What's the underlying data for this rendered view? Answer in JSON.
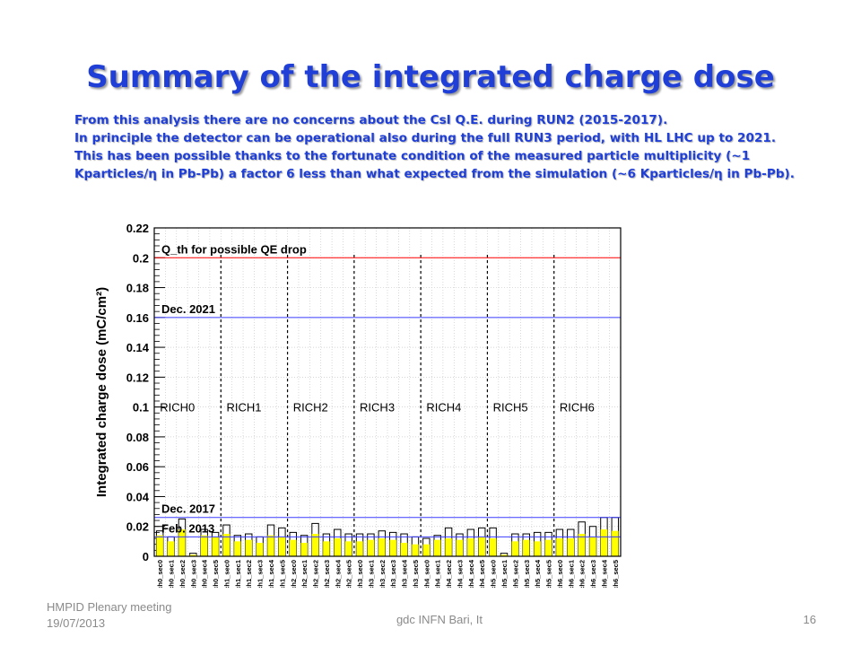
{
  "slide": {
    "title": "Summary of the integrated charge dose",
    "paragraph1": "From this analysis there are no concerns about the CsI Q.E. during RUN2 (2015-2017).",
    "paragraph2": "In principle the detector can be operational also during the full RUN3 period, with HL LHC up to 2021. This has been possible thanks to the fortunate condition of the measured particle multiplicity (~1 Kparticles/η in Pb-Pb) a factor 6 less than what expected from the simulation (~6 Kparticles/η in Pb-Pb)."
  },
  "footer": {
    "left_line1": "HMPID Plenary meeting",
    "left_line2": "19/07/2013",
    "center": "gdc INFN Bari, It",
    "page_number": "16"
  },
  "chart_data": {
    "type": "bar",
    "ylabel": "Integrated charge dose (mC/cm²)",
    "ylim": [
      0,
      0.22
    ],
    "yticks": [
      "0",
      "0.02",
      "0.04",
      "0.06",
      "0.08",
      "0.1",
      "0.12",
      "0.14",
      "0.16",
      "0.18",
      "0.2",
      "0.22"
    ],
    "categories": [
      "ch0_sec0",
      "ch0_sec1",
      "ch0_sec2",
      "ch0_sec3",
      "ch0_sec4",
      "ch0_sec5",
      "ch1_sec0",
      "ch1_sec1",
      "ch1_sec2",
      "ch1_sec3",
      "ch1_sec4",
      "ch1_sec5",
      "ch2_sec0",
      "ch2_sec1",
      "ch2_sec2",
      "ch2_sec3",
      "ch2_sec4",
      "ch2_sec5",
      "ch3_sec0",
      "ch3_sec1",
      "ch3_sec2",
      "ch3_sec3",
      "ch3_sec4",
      "ch3_sec5",
      "ch4_sec0",
      "ch4_sec1",
      "ch4_sec2",
      "ch4_sec3",
      "ch4_sec4",
      "ch4_sec5",
      "ch5_sec0",
      "ch5_sec1",
      "ch5_sec2",
      "ch5_sec3",
      "ch5_sec4",
      "ch5_sec5",
      "ch6_sec0",
      "ch6_sec1",
      "ch6_sec2",
      "ch6_sec3",
      "ch6_sec4",
      "ch6_sec5"
    ],
    "series": [
      {
        "color": "#ffff00",
        "style": "filled",
        "values": [
          0.014,
          0.01,
          0.018,
          0.001,
          0.014,
          0.013,
          0.015,
          0.01,
          0.011,
          0.009,
          0.014,
          0.013,
          0.011,
          0.009,
          0.015,
          0.01,
          0.012,
          0.01,
          0.01,
          0.011,
          0.012,
          0.011,
          0.009,
          0.008,
          0.008,
          0.011,
          0.012,
          0.011,
          0.012,
          0.013,
          0.012,
          0.001,
          0.01,
          0.011,
          0.01,
          0.011,
          0.012,
          0.012,
          0.015,
          0.013,
          0.018,
          0.017
        ]
      },
      {
        "color": "#000000",
        "style": "outline",
        "values": [
          0.017,
          0.013,
          0.025,
          0.002,
          0.018,
          0.016,
          0.021,
          0.014,
          0.015,
          0.013,
          0.021,
          0.019,
          0.016,
          0.014,
          0.022,
          0.015,
          0.018,
          0.015,
          0.015,
          0.015,
          0.017,
          0.016,
          0.015,
          0.013,
          0.012,
          0.014,
          0.019,
          0.015,
          0.018,
          0.019,
          0.019,
          0.002,
          0.015,
          0.015,
          0.016,
          0.016,
          0.018,
          0.018,
          0.023,
          0.02,
          0.026,
          0.026
        ]
      }
    ],
    "reference_lines": [
      {
        "value": 0.2,
        "color": "#ff0000",
        "label": "Q_th for possible QE drop"
      },
      {
        "value": 0.16,
        "color": "#3b3bff",
        "label": "Dec. 2021"
      },
      {
        "value": 0.026,
        "color": "#3b3bff",
        "label": "Dec. 2017"
      },
      {
        "value": 0.013,
        "color": "#3b3bff",
        "label": "Feb. 2013"
      }
    ],
    "groups": [
      "RICH0",
      "RICH1",
      "RICH2",
      "RICH3",
      "RICH4",
      "RICH5",
      "RICH6"
    ],
    "grid": true
  }
}
